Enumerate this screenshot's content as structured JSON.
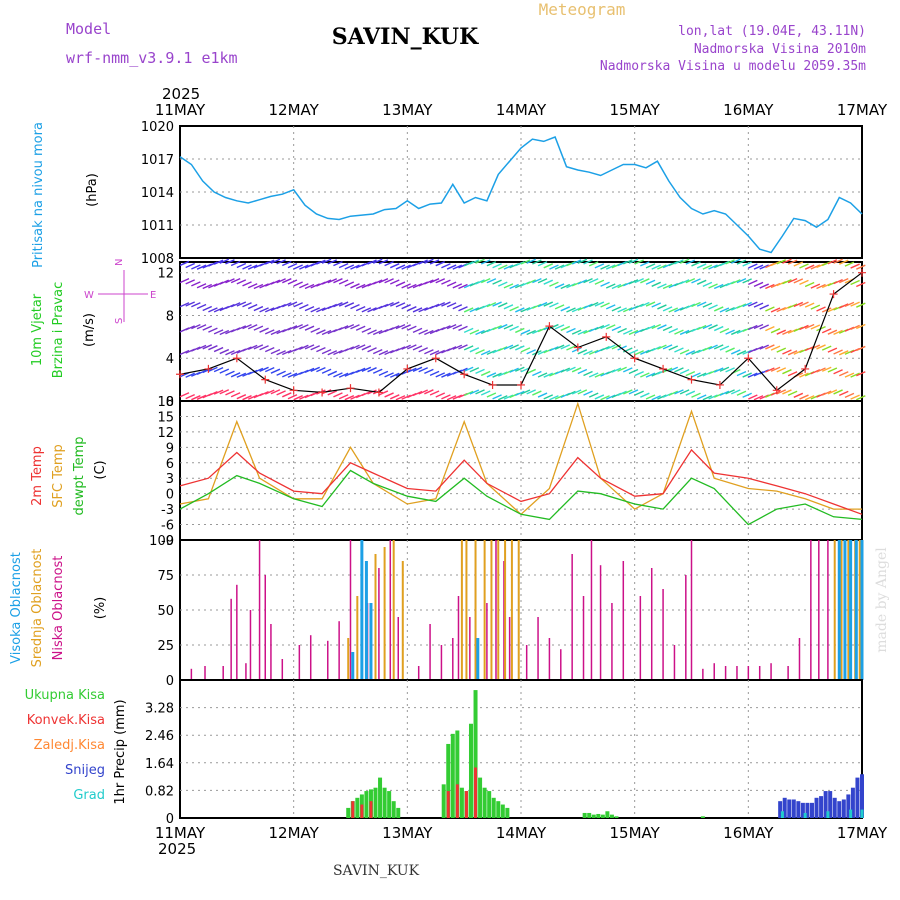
{
  "header": {
    "model_label": "Model",
    "model_name": "wrf-nmm_v3.9.1  e1km",
    "station": "SAVIN_KUK",
    "title": "Meteogram",
    "coords": "lon,lat (19.04E, 43.11N)",
    "elevation": "Nadmorska Visina 2010m",
    "model_elevation": "Nadmorska Visina u modelu 2059.35m",
    "watermark": "made by Angel"
  },
  "time_axis": {
    "year": "2025",
    "ticks": [
      "11MAY",
      "12MAY",
      "13MAY",
      "14MAY",
      "15MAY",
      "16MAY",
      "17MAY"
    ]
  },
  "footer_station": "SAVIN_KUK",
  "colors": {
    "pressure": "#1ca0e6",
    "t2m": "#ee3333",
    "tsfc": "#e0a020",
    "dewpt": "#22bb22",
    "cloud_high": "#1ca0e6",
    "cloud_mid": "#e0a020",
    "cloud_low": "#cc1188",
    "precip_total": "#33cc33",
    "precip_conv": "#ee3333",
    "precip_ice": "#ff8833",
    "precip_snow": "#3344cc",
    "precip_hail": "#22cccc",
    "wind_label": "#22cc22"
  },
  "chart_data": [
    {
      "type": "line",
      "panel": "pressure",
      "ylabel": "Pritisak na nivou mora",
      "unit": "(hPa)",
      "ylim": [
        1008,
        1020
      ],
      "yticks": [
        "1020",
        "1017",
        "1014",
        "1011",
        "1008"
      ],
      "grid": true,
      "x_days": [
        0,
        0.1,
        0.2,
        0.3,
        0.4,
        0.5,
        0.6,
        0.7,
        0.8,
        0.9,
        1,
        1.1,
        1.2,
        1.3,
        1.4,
        1.5,
        1.6,
        1.7,
        1.8,
        1.9,
        2,
        2.1,
        2.2,
        2.3,
        2.4,
        2.5,
        2.6,
        2.7,
        2.8,
        2.9,
        3,
        3.1,
        3.2,
        3.3,
        3.4,
        3.5,
        3.6,
        3.7,
        3.8,
        3.9,
        4,
        4.1,
        4.2,
        4.3,
        4.4,
        4.5,
        4.6,
        4.7,
        4.8,
        4.9,
        5,
        5.1,
        5.2,
        5.3,
        5.4,
        5.5,
        5.6,
        5.7,
        5.8,
        5.9,
        6
      ],
      "series": [
        {
          "values": [
            1017.2,
            1016.5,
            1015.0,
            1014.0,
            1013.5,
            1013.2,
            1013.0,
            1013.3,
            1013.6,
            1013.8,
            1014.2,
            1012.8,
            1012.0,
            1011.6,
            1011.5,
            1011.8,
            1011.9,
            1012.0,
            1012.4,
            1012.5,
            1013.2,
            1012.5,
            1012.9,
            1013.0,
            1014.7,
            1013.0,
            1013.5,
            1013.2,
            1015.6,
            1016.8,
            1018.0,
            1018.8,
            1018.6,
            1019.0,
            1016.3,
            1016.0,
            1015.8,
            1015.5,
            1016.0,
            1016.5,
            1016.5,
            1016.2,
            1016.8,
            1015.0,
            1013.5,
            1012.5,
            1012.0,
            1012.3,
            1012.0,
            1011.0,
            1010.0,
            1008.8,
            1008.5,
            1010.0,
            1011.6,
            1011.4,
            1010.8,
            1011.5,
            1013.5,
            1013.0,
            1012.0
          ]
        }
      ]
    },
    {
      "type": "line",
      "panel": "wind",
      "ylabel": "10m Vjetar Brzina i Pravac",
      "unit": "(m/s)",
      "compass": [
        "N",
        "W",
        "E",
        "S"
      ],
      "ylim": [
        0,
        13
      ],
      "yticks": [
        "12",
        "8",
        "4",
        "0"
      ],
      "grid": true,
      "x_days": [
        0,
        0.25,
        0.5,
        0.75,
        1,
        1.25,
        1.5,
        1.75,
        2,
        2.25,
        2.5,
        2.75,
        3,
        3.25,
        3.5,
        3.75,
        4,
        4.25,
        4.5,
        4.75,
        5,
        5.25,
        5.5,
        5.75,
        6
      ],
      "series": [
        {
          "values": [
            2.5,
            3.0,
            4.0,
            2.0,
            1.0,
            0.8,
            1.2,
            0.8,
            3.0,
            4.0,
            2.5,
            1.5,
            1.5,
            7.0,
            5.0,
            6.0,
            4.0,
            3.0,
            2.0,
            1.5,
            4.0,
            1.0,
            3.0,
            10.0,
            12.0
          ]
        }
      ]
    },
    {
      "type": "line",
      "panel": "temperature",
      "ylabel": "2m Temp / SFC Temp / dewpt Temp",
      "series_labels": [
        "2m Temp",
        "SFC Temp",
        "dewpt Temp"
      ],
      "unit": "(C)",
      "ylim": [
        -9,
        18
      ],
      "yticks": [
        "18",
        "15",
        "12",
        "9",
        "6",
        "3",
        "0",
        "-3",
        "-6",
        "-9"
      ],
      "grid": true,
      "x_days": [
        0,
        0.25,
        0.5,
        0.7,
        1,
        1.25,
        1.5,
        1.7,
        2,
        2.25,
        2.5,
        2.7,
        3,
        3.25,
        3.5,
        3.7,
        4,
        4.25,
        4.5,
        4.7,
        5,
        5.25,
        5.5,
        5.75,
        6
      ],
      "series": [
        {
          "values": [
            1.5,
            3.0,
            8.0,
            4.0,
            0.5,
            0.0,
            6.0,
            4.0,
            1.0,
            0.5,
            6.5,
            2.0,
            -1.5,
            0.0,
            7.0,
            3.0,
            -0.5,
            0.0,
            8.5,
            4.0,
            3.0,
            1.5,
            0.0,
            -2.0,
            -4.0
          ]
        },
        {
          "values": [
            -2.0,
            -1.0,
            14.0,
            3.0,
            -1.0,
            -1.0,
            9.0,
            2.0,
            -2.0,
            -1.0,
            14.0,
            2.0,
            -4.0,
            1.0,
            17.5,
            3.0,
            -3.0,
            0.0,
            16.0,
            3.0,
            1.0,
            0.5,
            -1.0,
            -3.0,
            -3.0
          ]
        },
        {
          "values": [
            -3.0,
            0.0,
            3.5,
            2.0,
            -1.0,
            -2.5,
            4.5,
            2.0,
            -0.5,
            -1.5,
            3.0,
            -0.5,
            -4.0,
            -5.0,
            0.5,
            0.0,
            -2.0,
            -3.0,
            3.0,
            1.0,
            -6.0,
            -3.0,
            -2.0,
            -4.5,
            -5.0
          ]
        }
      ]
    },
    {
      "type": "bar",
      "panel": "clouds",
      "ylabel": "Visoka Oblacnost / Srednja Oblacnost / Niska Oblacnost",
      "series_labels": [
        "Visoka Oblacnost",
        "Srednja Oblacnost",
        "Niska Oblacnost"
      ],
      "unit": "(%)",
      "ylim": [
        0,
        100
      ],
      "yticks": [
        "100",
        "75",
        "50",
        "25",
        "0"
      ],
      "grid": true,
      "series": [
        {
          "x_days": [
            1.52,
            1.6,
            1.64,
            1.68,
            2.62,
            5.8,
            5.85,
            5.9,
            5.95,
            6.0
          ],
          "values": [
            20,
            100,
            85,
            55,
            30,
            100,
            100,
            100,
            100,
            100
          ]
        },
        {
          "x_days": [
            1.48,
            1.56,
            1.72,
            1.8,
            1.88,
            1.96,
            2.48,
            2.52,
            2.6,
            2.68,
            2.74,
            2.8,
            2.86,
            2.92,
            2.98,
            5.76,
            5.82,
            5.88,
            5.94,
            5.98
          ],
          "values": [
            30,
            60,
            90,
            95,
            100,
            85,
            100,
            100,
            100,
            100,
            100,
            100,
            100,
            100,
            100,
            100,
            100,
            100,
            100,
            100
          ]
        },
        {
          "x_days": [
            0.1,
            0.22,
            0.38,
            0.45,
            0.5,
            0.58,
            0.62,
            0.7,
            0.75,
            0.8,
            0.9,
            1.05,
            1.15,
            1.3,
            1.4,
            1.5,
            1.65,
            1.75,
            1.85,
            1.92,
            2.1,
            2.2,
            2.3,
            2.4,
            2.45,
            2.55,
            2.6,
            2.7,
            2.78,
            2.85,
            2.9,
            3.05,
            3.15,
            3.25,
            3.35,
            3.45,
            3.55,
            3.62,
            3.7,
            3.8,
            3.9,
            4.05,
            4.15,
            4.25,
            4.35,
            4.45,
            4.5,
            4.6,
            4.7,
            4.8,
            4.9,
            5.0,
            5.1,
            5.2,
            5.35,
            5.45,
            5.55,
            5.62,
            5.7
          ],
          "values": [
            8,
            10,
            10,
            58,
            68,
            12,
            50,
            100,
            75,
            40,
            15,
            25,
            32,
            28,
            42,
            100,
            55,
            80,
            100,
            45,
            10,
            40,
            25,
            30,
            60,
            45,
            80,
            55,
            100,
            85,
            45,
            25,
            45,
            30,
            22,
            90,
            60,
            100,
            82,
            55,
            85,
            60,
            80,
            65,
            25,
            75,
            100,
            8,
            12,
            10,
            10,
            10,
            10,
            12,
            10,
            30,
            100,
            100,
            100
          ]
        }
      ]
    },
    {
      "type": "bar",
      "panel": "precipitation",
      "ylabel": "1hr Precip",
      "unit": "(mm)",
      "series_labels": [
        "Ukupna Kisa",
        "Konvek.Kisa",
        "Zaledj.Kisa",
        "Snijeg",
        "Grad"
      ],
      "ylim": [
        0,
        4.1
      ],
      "yticks": [
        "3.28",
        "2.46",
        "1.64",
        "0.82",
        "0"
      ],
      "grid": true,
      "series": [
        {
          "name": "Ukupna Kisa",
          "x_days": [
            1.48,
            1.52,
            1.56,
            1.6,
            1.64,
            1.68,
            1.72,
            1.76,
            1.8,
            1.84,
            1.88,
            1.92,
            2.32,
            2.36,
            2.4,
            2.44,
            2.48,
            2.52,
            2.56,
            2.6,
            2.64,
            2.68,
            2.72,
            2.76,
            2.8,
            2.84,
            2.88,
            3.56,
            3.6,
            3.64,
            3.68,
            3.72,
            3.76,
            3.8,
            3.84,
            4.6,
            5.48,
            5.52
          ],
          "values": [
            0.3,
            0.5,
            0.6,
            0.7,
            0.8,
            0.85,
            0.9,
            1.2,
            0.9,
            0.8,
            0.5,
            0.3,
            1.0,
            2.2,
            2.5,
            2.6,
            0.9,
            0.8,
            2.8,
            3.8,
            1.2,
            0.9,
            0.8,
            0.6,
            0.5,
            0.4,
            0.3,
            0.15,
            0.15,
            0.1,
            0.12,
            0.1,
            0.2,
            0.1,
            0.05,
            0.05,
            0.1,
            0.08
          ]
        },
        {
          "name": "Konvek.Kisa",
          "x_days": [
            1.52,
            1.6,
            1.68,
            2.36,
            2.44,
            2.52,
            2.6
          ],
          "values": [
            0.5,
            0.4,
            0.5,
            0.8,
            1.0,
            0.8,
            1.5
          ]
        },
        {
          "name": "Snijeg",
          "x_days": [
            5.28,
            5.32,
            5.36,
            5.4,
            5.44,
            5.48,
            5.52,
            5.56,
            5.6,
            5.64,
            5.68,
            5.72,
            5.76,
            5.8,
            5.84,
            5.88,
            5.92,
            5.96,
            6.0
          ],
          "values": [
            0.5,
            0.6,
            0.55,
            0.55,
            0.5,
            0.45,
            0.45,
            0.45,
            0.6,
            0.65,
            0.8,
            0.8,
            0.6,
            0.5,
            0.55,
            0.7,
            0.9,
            1.2,
            1.3
          ]
        },
        {
          "name": "Grad",
          "x_days": [
            5.3,
            5.5,
            5.7,
            5.9,
            6.0
          ],
          "values": [
            0.2,
            0.15,
            0.2,
            0.25,
            0.25
          ]
        }
      ]
    }
  ]
}
